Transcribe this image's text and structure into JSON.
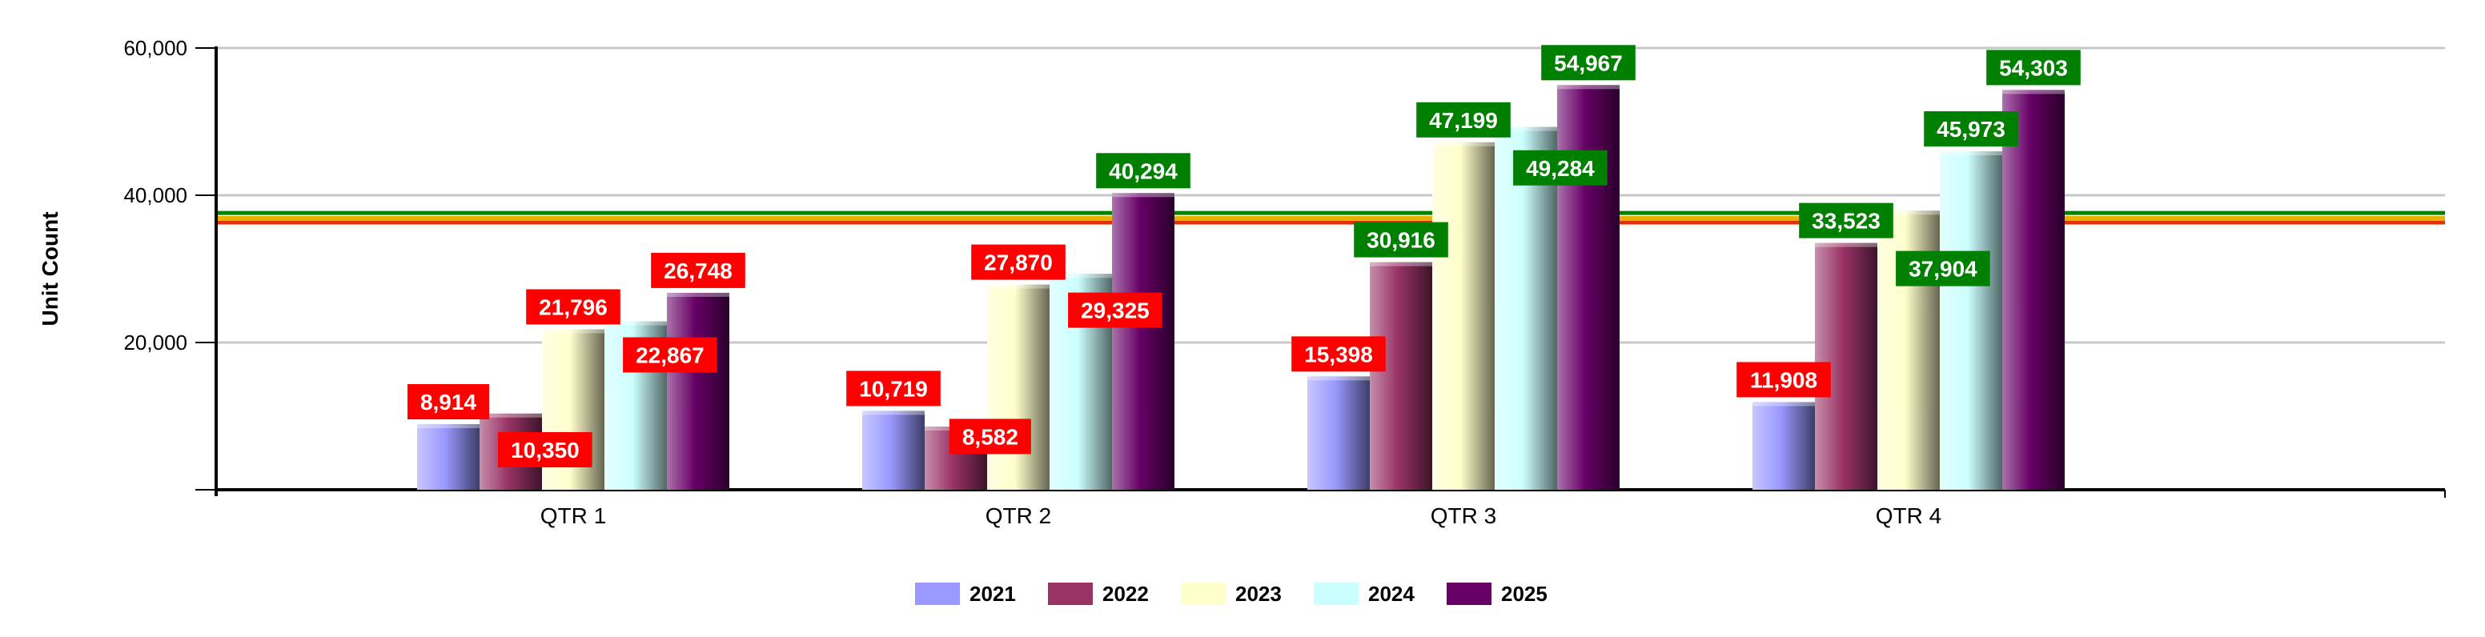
{
  "chart_data": {
    "type": "bar",
    "ylabel": "Unit Count",
    "ylim": [
      0,
      60000
    ],
    "y_ticks": [
      20000,
      40000,
      60000
    ],
    "y_tick_labels": [
      "20,000",
      "40,000",
      "60,000"
    ],
    "grid": true,
    "legend_position": "bottom-center",
    "categories": [
      "QTR 1",
      "QTR 2",
      "QTR 3",
      "QTR 4"
    ],
    "series": [
      {
        "name": "2021",
        "color": "#9999ff",
        "values": [
          8914,
          10719,
          15398,
          11908
        ],
        "label_text": [
          "8,914",
          "10,719",
          "15,398",
          "11,908"
        ]
      },
      {
        "name": "2022",
        "color": "#993366",
        "values": [
          10350,
          8582,
          30916,
          33523
        ],
        "label_text": [
          "10,350",
          "8,582",
          "30,916",
          "33,523"
        ]
      },
      {
        "name": "2023",
        "color": "#ffffcc",
        "values": [
          21796,
          27870,
          47199,
          37904
        ],
        "label_text": [
          "21,796",
          "27,870",
          "47,199",
          "37,904"
        ]
      },
      {
        "name": "2024",
        "color": "#ccffff",
        "values": [
          22867,
          29325,
          49284,
          45973
        ],
        "label_text": [
          "22,867",
          "29,325",
          "49,284",
          "45,973"
        ]
      },
      {
        "name": "2025",
        "color": "#660066",
        "values": [
          26748,
          40294,
          54967,
          54303
        ],
        "label_text": [
          "26,748",
          "40,294",
          "54,967",
          "54,303"
        ]
      }
    ],
    "reference_lines": [
      {
        "value": 37600,
        "color": "#008000"
      },
      {
        "value": 36900,
        "color": "#e8b000"
      },
      {
        "value": 36300,
        "color": "#e03000"
      }
    ],
    "label_colors": {
      "above_reference": "#008000",
      "below_reference": "#ff0000"
    }
  }
}
